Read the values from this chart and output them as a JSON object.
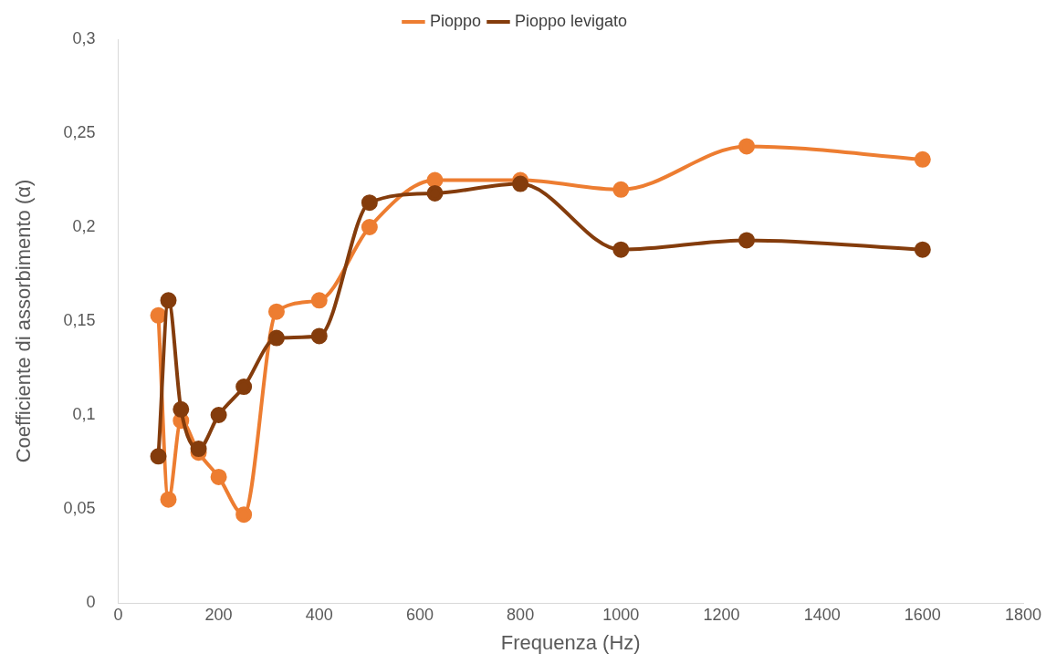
{
  "chart_data": {
    "type": "line",
    "xlabel": "Frequenza (Hz)",
    "ylabel": "Coefficiente di assorbimento (α)",
    "x": [
      80,
      100,
      125,
      160,
      200,
      250,
      315,
      400,
      500,
      630,
      800,
      1000,
      1250,
      1600
    ],
    "series": [
      {
        "name": "Pioppo",
        "color": "#ed7d31",
        "values": [
          0.153,
          0.055,
          0.097,
          0.08,
          0.067,
          0.047,
          0.155,
          0.161,
          0.2,
          0.225,
          0.225,
          0.22,
          0.243,
          0.236
        ]
      },
      {
        "name": "Pioppo levigato",
        "color": "#843c0c",
        "values": [
          0.078,
          0.161,
          0.103,
          0.082,
          0.1,
          0.115,
          0.141,
          0.142,
          0.213,
          0.218,
          0.223,
          0.188,
          0.193,
          0.188
        ]
      }
    ],
    "xlim": [
      0,
      1800
    ],
    "xticks": [
      0,
      200,
      400,
      600,
      800,
      1000,
      1200,
      1400,
      1600,
      1800
    ],
    "ylim": [
      0,
      0.3
    ],
    "yticks": [
      0,
      {
        "value": 0.05,
        "label": "0,05"
      },
      {
        "value": 0.1,
        "label": "0,1"
      },
      {
        "value": 0.15,
        "label": "0,15"
      },
      {
        "value": 0.2,
        "label": "0,2"
      },
      {
        "value": 0.25,
        "label": "0,25"
      },
      {
        "value": 0.3,
        "label": "0,3"
      }
    ],
    "grid": false,
    "legend": "top",
    "marker": "circle",
    "line_style": "solid"
  }
}
